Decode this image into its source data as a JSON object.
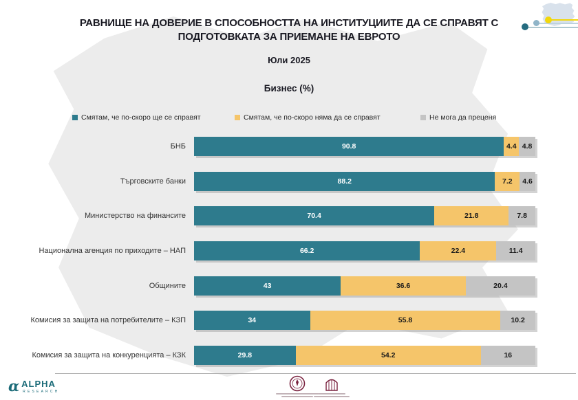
{
  "header": {
    "title_lines": [
      "РАВНИЩЕ НА ДОВЕРИЕ В СПОСОБНОСТТА НА ИНСТИТУЦИИТЕ ДА СЕ СПРАВЯТ С",
      "ПОДГОТОВКАТА ЗА ПРИЕМАНЕ НА ЕВРОТО"
    ],
    "subtitle": "Юли 2025",
    "section_label": "Бизнес (%)"
  },
  "chart_data": {
    "type": "bar",
    "orientation": "horizontal",
    "stacked": true,
    "unit": "%",
    "xlim": [
      0,
      100
    ],
    "grid": false,
    "legend_position": "top",
    "title": "Бизнес (%)",
    "categories": [
      "БНБ",
      "Търговските банки",
      "Министерство на финансите",
      "Национална агенция по приходите – НАП",
      "Общините",
      "Комисия за защита на потребителите – КЗП",
      "Комисия за защита на конкуренцията – КЗК"
    ],
    "series": [
      {
        "name": "Смятам, че по-скоро ще се справят",
        "color": "#2e7b8d",
        "text_color": "#ffffff",
        "values": [
          90.8,
          88.2,
          70.4,
          66.2,
          43,
          34,
          29.8
        ]
      },
      {
        "name": "Смятам, че по-скоро няма да се справят",
        "color": "#f5c56a",
        "text_color": "#1a1a1a",
        "values": [
          4.4,
          7.2,
          21.8,
          22.4,
          36.6,
          55.8,
          54.2
        ]
      },
      {
        "name": "Не мога да преценя",
        "color": "#c4c4c4",
        "text_color": "#1a1a1a",
        "values": [
          4.8,
          4.6,
          7.8,
          11.4,
          20.4,
          10.2,
          16
        ]
      }
    ]
  },
  "footer": {
    "alpha_logo": {
      "text": "ALPHA",
      "subtext": "RESEARCH"
    }
  },
  "colors": {
    "accent_teal": "#2e7b8d",
    "accent_yellow": "#f5c56a",
    "accent_gray": "#c4c4c4",
    "watermark": "#ececec",
    "mini_map": "#d9e2ec",
    "decor_yellow": "#f2d70a",
    "decor_blue": "#8fb4c8",
    "decor_teal": "#256c80",
    "logo_maroon": "#7a2340"
  }
}
